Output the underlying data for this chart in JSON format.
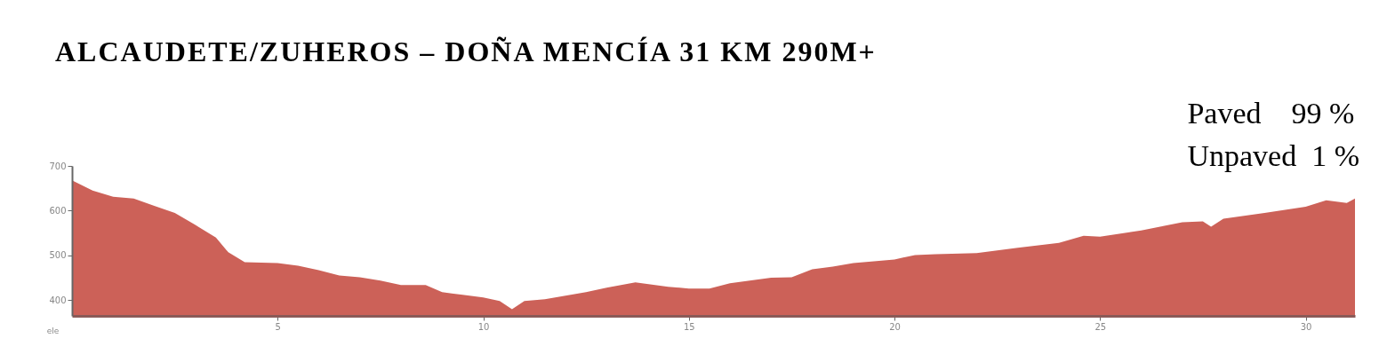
{
  "chart_data": {
    "type": "area",
    "title": "ALCAUDETE/ZUHEROS – DOÑA MENCÍA 31 KM 290M+",
    "ylabel": "ele",
    "annotations": [
      "Paved    99 %",
      "Unpaved  1 %"
    ],
    "x": [
      0,
      0.5,
      1,
      1.5,
      2,
      2.5,
      3,
      3.5,
      3.8,
      4.2,
      5,
      5.5,
      6,
      6.5,
      7,
      7.5,
      8,
      8.6,
      9,
      9.5,
      10,
      10.4,
      10.7,
      11,
      11.5,
      12,
      12.5,
      13,
      13.7,
      14.5,
      15,
      15.5,
      16,
      17,
      17.5,
      18,
      18.5,
      19,
      20,
      20.5,
      21,
      22,
      23,
      24,
      24.6,
      25,
      26,
      27,
      27.5,
      27.7,
      28,
      29,
      30,
      30.5,
      31,
      31.2
    ],
    "series": [
      {
        "color": "#cc6158",
        "values": [
          668,
          645,
          631,
          627,
          611,
          595,
          568,
          540,
          507,
          485,
          483,
          477,
          467,
          455,
          451,
          444,
          434,
          434,
          418,
          412,
          406,
          398,
          380,
          398,
          402,
          410,
          418,
          428,
          440,
          430,
          426,
          426,
          438,
          450,
          451,
          469,
          475,
          483,
          491,
          501,
          503,
          505,
          517,
          528,
          544,
          542,
          556,
          574,
          576,
          564,
          582,
          595,
          609,
          623,
          617,
          627
        ]
      }
    ],
    "xlim": [
      0,
      31.2
    ],
    "ylim": [
      365,
      700
    ],
    "xticks": [
      5,
      10,
      15,
      20,
      25,
      30
    ],
    "yticks": [
      400,
      500,
      600,
      700
    ],
    "grid": false
  }
}
